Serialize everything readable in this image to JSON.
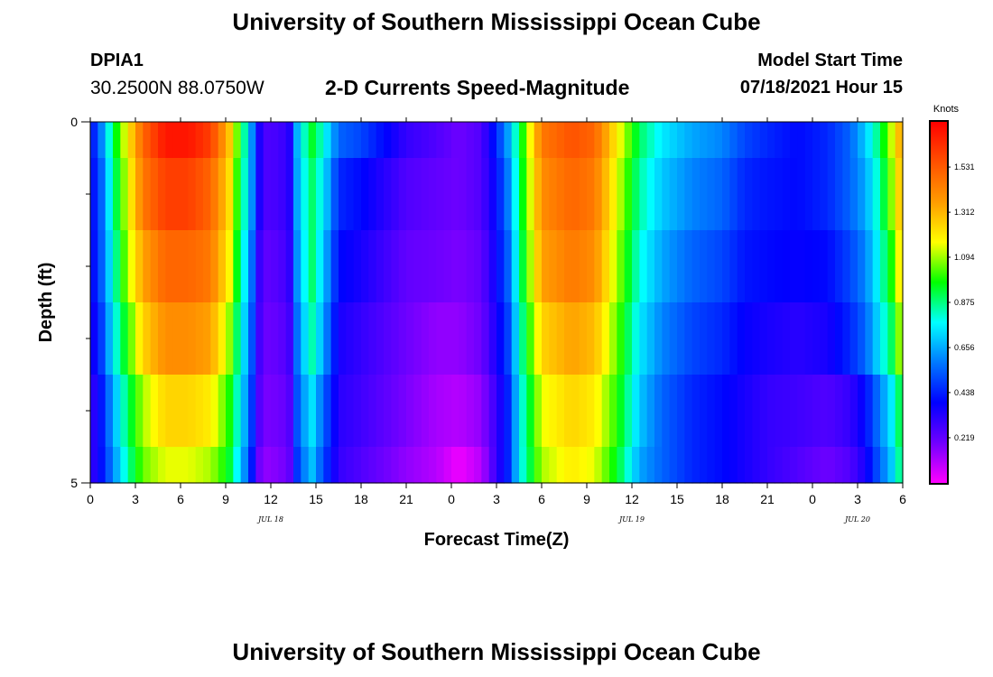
{
  "top_title": "University of Southern Mississippi Ocean Cube",
  "bottom_title": "University of Southern Mississippi Ocean Cube",
  "station": {
    "id": "DPIA1",
    "coords": "30.2500N  88.0750W"
  },
  "model_start": {
    "label": "Model Start Time",
    "value": "07/18/2021 Hour 15"
  },
  "colors": {
    "scale": [
      "#ff00ff",
      "#7000ff",
      "#0000ff",
      "#0078ff",
      "#00ffff",
      "#00ff00",
      "#ffff00",
      "#ff9c00",
      "#ff5000",
      "#ff0000"
    ]
  },
  "chart_data": {
    "type": "heatmap",
    "title": "2-D Currents Speed-Magnitude",
    "xlabel": "Forecast Time(Z)",
    "ylabel": "Depth (ft)",
    "xlim": [
      0,
      54
    ],
    "ylim": [
      0,
      5
    ],
    "x_ticks": [
      0,
      3,
      6,
      9,
      12,
      15,
      18,
      21,
      24,
      27,
      30,
      33,
      36,
      39,
      42,
      45,
      48,
      51,
      54
    ],
    "x_tick_labels": [
      "0",
      "3",
      "6",
      "9",
      "12",
      "15",
      "18",
      "21",
      "0",
      "3",
      "6",
      "9",
      "12",
      "15",
      "18",
      "21",
      "0",
      "3",
      "6"
    ],
    "y_tick_labels": [
      "0",
      "5"
    ],
    "y_minor_ticks": [
      1,
      2,
      3,
      4
    ],
    "date_labels": [
      {
        "text": "JUL 18",
        "x": 12
      },
      {
        "text": "JUL 19",
        "x": 36
      },
      {
        "text": "JUL 20",
        "x": 51
      }
    ],
    "colorbar": {
      "unit": "Knots",
      "min": 0,
      "max": 1.75,
      "tick_values": [
        0.219,
        0.438,
        0.656,
        0.875,
        1.094,
        1.312,
        1.531
      ],
      "tick_labels": [
        "0.219",
        "0.438",
        "0.656",
        "0.875",
        "1.094",
        "1.312",
        "1.531"
      ]
    },
    "depth_levels": [
      0,
      1,
      2,
      3,
      4,
      5
    ],
    "key_times": [
      0,
      0.5,
      1.5,
      2.5,
      3.5,
      5,
      6.5,
      8,
      9.2,
      10,
      10.6,
      11.2,
      11.8,
      13.2,
      13.8,
      14.7,
      15.5,
      16.5,
      18,
      21,
      23,
      24.5,
      26,
      27,
      27.8,
      28.5,
      30,
      32,
      33.5,
      35,
      36.5,
      38,
      40,
      42,
      43.5,
      45,
      47,
      49,
      50.5,
      51.5,
      52.5,
      53.5,
      54
    ],
    "speed_profiles": [
      [
        0.4,
        0.5,
        0.9,
        1.2,
        1.5,
        1.7,
        1.7,
        1.6,
        1.3,
        0.95,
        0.7,
        0.35,
        0.25,
        0.3,
        0.7,
        0.95,
        0.8,
        0.55,
        0.5,
        0.3,
        0.25,
        0.2,
        0.25,
        0.45,
        0.65,
        0.9,
        1.45,
        1.55,
        1.5,
        1.2,
        0.9,
        0.75,
        0.65,
        0.6,
        0.5,
        0.45,
        0.4,
        0.45,
        0.55,
        0.7,
        0.9,
        1.2,
        1.4
      ],
      [
        0.4,
        0.45,
        0.85,
        1.15,
        1.45,
        1.6,
        1.6,
        1.5,
        1.25,
        0.9,
        0.7,
        0.35,
        0.25,
        0.3,
        0.68,
        0.9,
        0.75,
        0.45,
        0.4,
        0.25,
        0.22,
        0.2,
        0.25,
        0.4,
        0.6,
        0.88,
        1.4,
        1.5,
        1.45,
        1.15,
        0.85,
        0.7,
        0.6,
        0.55,
        0.45,
        0.42,
        0.4,
        0.45,
        0.55,
        0.65,
        0.85,
        1.15,
        1.35
      ],
      [
        0.38,
        0.45,
        0.8,
        1.1,
        1.35,
        1.5,
        1.5,
        1.45,
        1.2,
        0.85,
        0.65,
        0.3,
        0.22,
        0.28,
        0.65,
        0.9,
        0.7,
        0.4,
        0.35,
        0.22,
        0.2,
        0.18,
        0.22,
        0.38,
        0.55,
        0.85,
        1.35,
        1.45,
        1.4,
        1.1,
        0.8,
        0.65,
        0.55,
        0.5,
        0.42,
        0.4,
        0.38,
        0.4,
        0.5,
        0.6,
        0.8,
        1.05,
        1.3
      ],
      [
        0.35,
        0.4,
        0.75,
        1.0,
        1.25,
        1.4,
        1.4,
        1.35,
        1.1,
        0.8,
        0.6,
        0.28,
        0.2,
        0.25,
        0.6,
        0.85,
        0.65,
        0.35,
        0.3,
        0.2,
        0.15,
        0.15,
        0.2,
        0.35,
        0.5,
        0.8,
        1.25,
        1.35,
        1.3,
        1.05,
        0.75,
        0.6,
        0.5,
        0.45,
        0.38,
        0.35,
        0.32,
        0.35,
        0.45,
        0.55,
        0.75,
        0.95,
        1.2
      ],
      [
        0.3,
        0.35,
        0.65,
        0.9,
        1.1,
        1.25,
        1.25,
        1.2,
        1.0,
        0.75,
        0.55,
        0.25,
        0.18,
        0.22,
        0.55,
        0.75,
        0.55,
        0.32,
        0.28,
        0.18,
        0.12,
        0.1,
        0.15,
        0.3,
        0.45,
        0.75,
        1.15,
        1.25,
        1.2,
        1.0,
        0.7,
        0.55,
        0.45,
        0.4,
        0.35,
        0.3,
        0.28,
        0.25,
        0.3,
        0.4,
        0.6,
        0.8,
        1.0
      ],
      [
        0.3,
        0.35,
        0.6,
        0.85,
        1.05,
        1.15,
        1.15,
        1.1,
        0.95,
        0.7,
        0.5,
        0.2,
        0.15,
        0.2,
        0.5,
        0.7,
        0.5,
        0.3,
        0.25,
        0.15,
        0.1,
        0.02,
        0.1,
        0.3,
        0.45,
        0.75,
        1.1,
        1.2,
        1.15,
        0.95,
        0.65,
        0.55,
        0.45,
        0.4,
        0.35,
        0.3,
        0.25,
        0.2,
        0.25,
        0.35,
        0.55,
        0.75,
        0.95
      ]
    ]
  }
}
